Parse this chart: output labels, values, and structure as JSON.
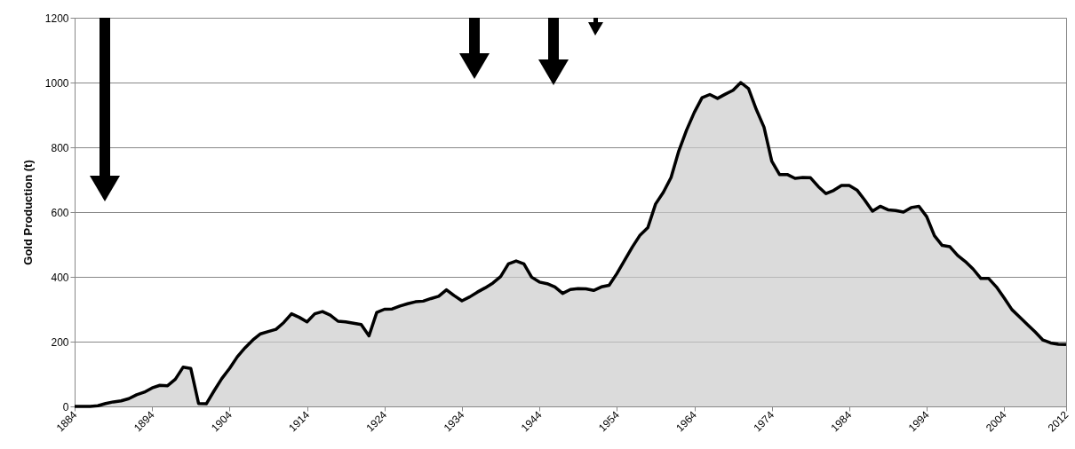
{
  "chart_data": {
    "type": "area",
    "ylabel": "Gold Production (t)",
    "x": [
      1884,
      1885,
      1886,
      1887,
      1888,
      1889,
      1890,
      1891,
      1892,
      1893,
      1894,
      1895,
      1896,
      1897,
      1898,
      1899,
      1900,
      1901,
      1902,
      1903,
      1904,
      1905,
      1906,
      1907,
      1908,
      1909,
      1910,
      1911,
      1912,
      1913,
      1914,
      1915,
      1916,
      1917,
      1918,
      1919,
      1920,
      1921,
      1922,
      1923,
      1924,
      1925,
      1926,
      1927,
      1928,
      1929,
      1930,
      1931,
      1932,
      1933,
      1934,
      1935,
      1936,
      1937,
      1938,
      1939,
      1940,
      1941,
      1942,
      1943,
      1944,
      1945,
      1946,
      1947,
      1948,
      1949,
      1950,
      1951,
      1952,
      1953,
      1954,
      1955,
      1956,
      1957,
      1958,
      1959,
      1960,
      1961,
      1962,
      1963,
      1964,
      1965,
      1966,
      1967,
      1968,
      1969,
      1970,
      1971,
      1972,
      1973,
      1974,
      1975,
      1976,
      1977,
      1978,
      1979,
      1980,
      1981,
      1982,
      1983,
      1984,
      1985,
      1986,
      1987,
      1988,
      1989,
      1990,
      1991,
      1992,
      1993,
      1994,
      1995,
      1996,
      1997,
      1998,
      1999,
      2000,
      2001,
      2002,
      2003,
      2004,
      2005,
      2006,
      2007,
      2008,
      2009,
      2010,
      2011,
      2012
    ],
    "series": [
      {
        "color": "#cccccc",
        "values": [
          0,
          0,
          0,
          2,
          9,
          14,
          17,
          24,
          36,
          44,
          57,
          65,
          64,
          84,
          121,
          117,
          9,
          8,
          48,
          86,
          117,
          153,
          181,
          205,
          224,
          231,
          238,
          259,
          286,
          275,
          261,
          286,
          293,
          282,
          263,
          261,
          257,
          253,
          218,
          290,
          300,
          301,
          310,
          317,
          323,
          325,
          333,
          340,
          360,
          342,
          326,
          338,
          353,
          366,
          381,
          401,
          440,
          449,
          440,
          399,
          384,
          379,
          369,
          349,
          361,
          364,
          363,
          358,
          369,
          374,
          410,
          451,
          492,
          529,
          552,
          625,
          661,
          707,
          789,
          853,
          908,
          953,
          963,
          951,
          964,
          976,
          1000,
          981,
          917,
          862,
          757,
          716,
          716,
          704,
          707,
          706,
          679,
          657,
          667,
          682,
          682,
          668,
          637,
          603,
          618,
          607,
          605,
          600,
          614,
          618,
          586,
          527,
          497,
          493,
          466,
          447,
          424,
          395,
          395,
          369,
          335,
          299,
          276,
          253,
          230,
          205,
          196,
          192,
          191
        ]
      }
    ],
    "xlim": [
      1884,
      2012
    ],
    "xticks": [
      1884,
      1894,
      1904,
      1914,
      1924,
      1934,
      1944,
      1954,
      1964,
      1974,
      1984,
      1994,
      2004,
      2012
    ],
    "ylim": [
      0,
      1200
    ],
    "yticks": [
      0,
      200,
      400,
      600,
      800,
      1000,
      1200
    ],
    "grid": "y"
  }
}
